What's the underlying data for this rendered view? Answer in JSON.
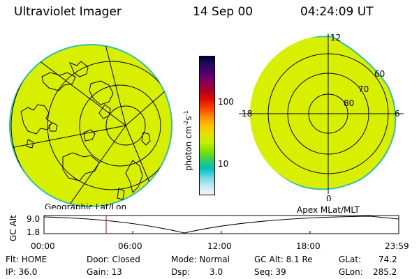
{
  "header": {
    "instrument": "Ultraviolet Imager",
    "date": "14 Sep 00",
    "time": "04:24:09 UT"
  },
  "colorbar": {
    "unit": "photon cm",
    "unit_exp1": "-2",
    "unit_mid": "s",
    "unit_exp2": "-1",
    "tick_100": "100",
    "tick_10": "10",
    "colors": [
      "#000040",
      "#2a0a60",
      "#500070",
      "#8a0055",
      "#b00020",
      "#e01000",
      "#ff4000",
      "#ff8c00",
      "#ffc000",
      "#e8e000",
      "#c0f000",
      "#80e000",
      "#30d060",
      "#00c0c0",
      "#70d8e0",
      "#c0ecf0",
      "#f0f8ff"
    ]
  },
  "geo_map": {
    "label": "Geographic Lat/Lon",
    "fill": "#d8f000"
  },
  "apex_map": {
    "label": "Apex  MLat/MLT",
    "fill": "#d8f000",
    "mlt_12": "12",
    "mlt_18": "18",
    "mlt_6": "6",
    "mlt_0": "0",
    "lat_60": "60",
    "lat_70": "70",
    "lat_80": "80"
  },
  "orbit_plot": {
    "ylabel": "GC Alt",
    "ytick_top": "9.0",
    "ytick_bottom": "1.8",
    "xticks": [
      "00:00",
      "06:00",
      "12:00",
      "18:00",
      "23:59"
    ],
    "marker_color": "#d00000"
  },
  "info": {
    "flt": "Flt: HOME",
    "ip": "IP: 36.0",
    "door": "Door: Closed",
    "gain": "Gain: 13",
    "mode": "Mode: Normal",
    "dsp_label": "Dsp:",
    "dsp_value": "3.0",
    "gcalt": "GC Alt: 8.1 Re",
    "seq": "Seq: 39",
    "glat_label": "GLat:",
    "glat_value": "74.2",
    "glon_label": "GLon:",
    "glon_value": "285.2"
  }
}
